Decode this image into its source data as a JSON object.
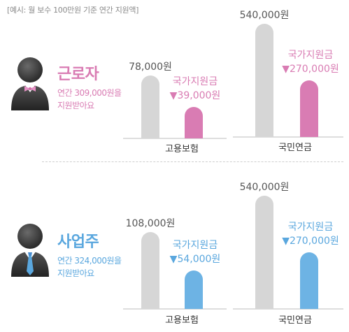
{
  "note": "[예시: 월 보수 100만원 기준 연간 지원액]",
  "colors": {
    "grey_bar": "#d6d6d6",
    "worker_accent": "#d97cb3",
    "business_accent": "#6db3e4",
    "business_text": "#5aa7de",
    "axis": "#bdbdbd"
  },
  "worker": {
    "role": "근로자",
    "desc_line1": "연간 309,000원을",
    "desc_line2": "지원받아요",
    "avatar_icon": "worker-avatar-bowtie-icon"
  },
  "business": {
    "role": "사업주",
    "desc_line1": "연간 324,000원을",
    "desc_line2": "지원받아요",
    "avatar_icon": "business-avatar-necktie-icon"
  },
  "chart_data": [
    {
      "type": "bar",
      "group": "근로자",
      "category": "고용보험",
      "series": [
        {
          "name": "",
          "value": 78000,
          "label": "78,000원"
        },
        {
          "name": "국가지원금",
          "value": 39000,
          "label": "▼39,000원"
        }
      ]
    },
    {
      "type": "bar",
      "group": "근로자",
      "category": "국민연금",
      "series": [
        {
          "name": "",
          "value": 540000,
          "label": "540,000원"
        },
        {
          "name": "국가지원금",
          "value": 270000,
          "label": "▼270,000원"
        }
      ]
    },
    {
      "type": "bar",
      "group": "사업주",
      "category": "고용보험",
      "series": [
        {
          "name": "",
          "value": 108000,
          "label": "108,000원"
        },
        {
          "name": "국가지원금",
          "value": 54000,
          "label": "▼54,000원"
        }
      ]
    },
    {
      "type": "bar",
      "group": "사업주",
      "category": "국민연금",
      "series": [
        {
          "name": "",
          "value": 540000,
          "label": "540,000원"
        },
        {
          "name": "국가지원금",
          "value": 270000,
          "label": "▼270,000원"
        }
      ]
    }
  ]
}
